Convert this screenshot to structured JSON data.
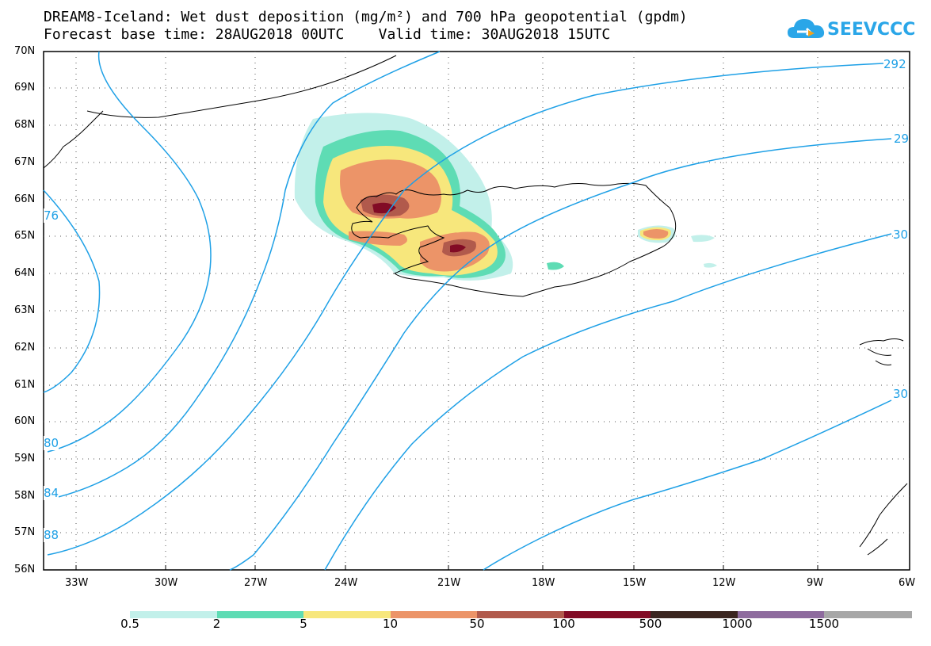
{
  "title_line1": "DREAM8-Iceland: Wet dust deposition (mg/m²) and 700 hPa geopotential (gpdm)",
  "title_line2": "Forecast base time: 28AUG2018 00UTC    Valid time: 30AUG2018 15UTC",
  "logo_text": "SEEVCCC",
  "lat_labels": [
    "70N",
    "69N",
    "68N",
    "67N",
    "66N",
    "65N",
    "64N",
    "63N",
    "62N",
    "61N",
    "60N",
    "59N",
    "58N",
    "57N",
    "56N"
  ],
  "lon_labels": [
    "33W",
    "30W",
    "27W",
    "24W",
    "21W",
    "18W",
    "15W",
    "12W",
    "9W",
    "6W"
  ],
  "contour_labels": [
    "292",
    "29",
    "30",
    "30",
    "76",
    "80",
    "84",
    "88"
  ],
  "legend_values": [
    "0.5",
    "2",
    "5",
    "10",
    "50",
    "100",
    "500",
    "1000",
    "1500"
  ],
  "legend_colors": [
    "#c2f0ea",
    "#5edcb4",
    "#f7e77c",
    "#ec9468",
    "#b15a4c",
    "#820b25",
    "#3b2620",
    "#8e6b9e",
    "#a7a7a7"
  ],
  "colors": {
    "contour": "#1ea0e6",
    "logo": "#2aa6e8"
  }
}
